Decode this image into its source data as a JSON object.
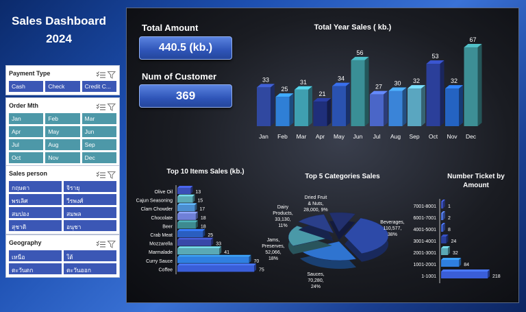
{
  "dashboard": {
    "title_line1": "Sales Dashboard",
    "title_line2": "2024"
  },
  "slicers": {
    "payment": {
      "title": "Payment Type",
      "items": [
        "Cash",
        "Check",
        "Credit C..."
      ]
    },
    "order_mth": {
      "title": "Order Mth",
      "items": [
        "Jan",
        "Feb",
        "Mar",
        "Apr",
        "May",
        "Jun",
        "Jul",
        "Aug",
        "Sep",
        "Oct",
        "Nov",
        "Dec"
      ]
    },
    "salesperson": {
      "title": "Sales person",
      "items": [
        "กฤษดา",
        "จิรายุ",
        "พรเลิศ",
        "วีรพงศ์",
        "สมปอง",
        "สมพล",
        "สุชาติ",
        "อนุชา"
      ]
    },
    "geography": {
      "title": "Geography",
      "items": [
        "เหนือ",
        "ใต้",
        "ตะวันตก",
        "ตะวันออก"
      ]
    }
  },
  "kpi": {
    "total_label": "Total Amount",
    "total_value": "440.5 (kb.)",
    "customer_label": "Num of Customer",
    "customer_value": "369"
  },
  "colors": {
    "blue": "#3b57b5",
    "teal": "#4d98a8",
    "bar_blue": "#2f64c8",
    "bar_teal": "#3f8f9a",
    "bar_navy": "#2a3f8f"
  },
  "chart_data": [
    {
      "type": "bar",
      "title": "Total Year Sales ( kb.)",
      "categories": [
        "Jan",
        "Feb",
        "Mar",
        "Apr",
        "May",
        "Jun",
        "Jul",
        "Aug",
        "Sep",
        "Oct",
        "Nov",
        "Dec"
      ],
      "values": [
        33,
        25,
        31,
        21,
        34,
        56,
        27,
        30,
        32,
        53,
        32,
        67
      ]
    },
    {
      "type": "bar",
      "orientation": "horizontal",
      "title": "Top 10 Items Sales (kb.)",
      "categories": [
        "Olive Oil",
        "Cajun Seasoning",
        "Clam Chowder",
        "Chocolate",
        "Beer",
        "Crab Meat",
        "Mozzarella",
        "Marmalade",
        "Curry Sauce",
        "Coffee"
      ],
      "values": [
        13,
        15,
        17,
        18,
        18,
        25,
        33,
        41,
        70,
        75
      ]
    },
    {
      "type": "pie",
      "title": "Top 5 Categories Sales",
      "labels": [
        "Beverages",
        "Sauces",
        "Jams, Preserves",
        "Dairy Products",
        "Dried Fruit & Nuts"
      ],
      "values": [
        110577,
        70280,
        52066,
        33130,
        28000
      ],
      "value_labels": [
        "110,577,",
        "70,280,",
        "52,066,",
        "33,130,",
        "28,000,"
      ],
      "percents": [
        "38%",
        "24%",
        "18%",
        "11%",
        "9%"
      ]
    },
    {
      "type": "bar",
      "orientation": "horizontal",
      "title": "Number Ticket by Amount",
      "categories": [
        "7001-8001",
        "6001-7001",
        "4001-5001",
        "3001-4001",
        "2001-3001",
        "1001-2001",
        "1-1001"
      ],
      "values": [
        1,
        2,
        8,
        24,
        32,
        84,
        218
      ]
    }
  ]
}
